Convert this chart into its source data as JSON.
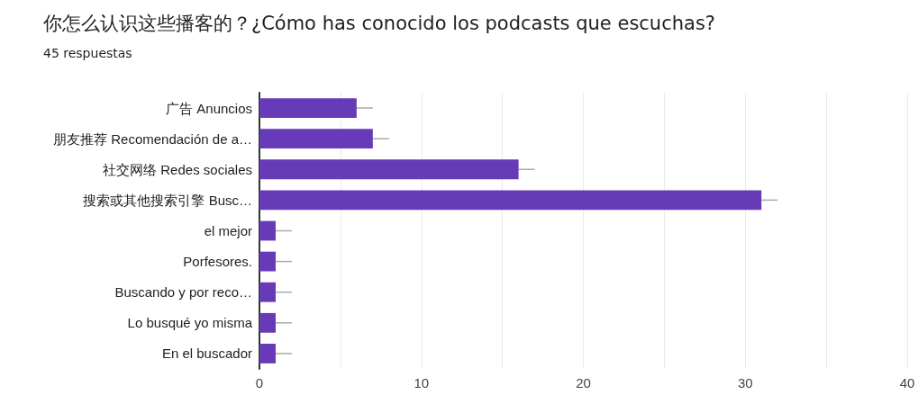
{
  "chart_data": {
    "type": "bar",
    "orientation": "horizontal",
    "title": "你怎么认识这些播客的？¿Cómo has conocido los podcasts que escuchas?",
    "subtitle": "45 respuestas",
    "categories": [
      "广告 Anuncios",
      "朋友推荐 Recomendación de a…",
      "社交网络 Redes sociales",
      "搜索或其他搜索引擎 Busc…",
      "el mejor",
      "Porfesores.",
      "Buscando y por reco…",
      "Lo busqué yo misma",
      "En el buscador"
    ],
    "values": [
      6,
      7,
      16,
      31,
      1,
      1,
      1,
      1,
      1
    ],
    "errors": [
      [
        6,
        7
      ],
      [
        7,
        8
      ],
      [
        16,
        17
      ],
      [
        31,
        32
      ],
      [
        1,
        2
      ],
      [
        1,
        2
      ],
      [
        1,
        2
      ],
      [
        1,
        2
      ],
      [
        1,
        2
      ]
    ],
    "color": "#673ab7",
    "xlim": [
      0,
      40
    ],
    "xticks": [
      0,
      {
        "value": 5,
        "label": null
      },
      10,
      {
        "value": 15,
        "label": null
      },
      20,
      {
        "value": 25,
        "label": null
      },
      30,
      {
        "value": 35,
        "label": null
      },
      40
    ],
    "grid": "x"
  }
}
